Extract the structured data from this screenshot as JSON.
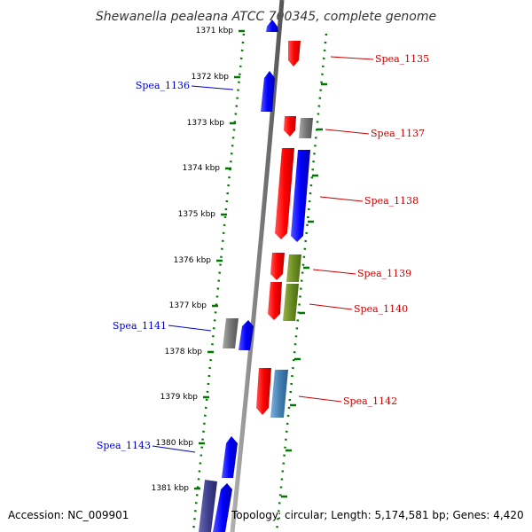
{
  "title": "Shewanella pealeana ATCC 700345, complete genome",
  "footer": {
    "accession": "Accession: NC_009901",
    "topology": "Topology: circular; Length: 5,174,581 bp; Genes: 4,420"
  },
  "colors": {
    "forward_gene": "#ff0000",
    "reverse_gene": "#0000ff",
    "gray_gene": "#808080",
    "olive_gene": "#6b8e23",
    "steel_gene": "#4682b4",
    "indigo_gene": "#3f3f8f",
    "backbone": "#808080",
    "tick_green": "#007700",
    "label_forward": "#cc0000",
    "label_reverse": "#0000cc"
  },
  "kbp_labels": [
    "1371 kbp",
    "1372 kbp",
    "1373 kbp",
    "1374 kbp",
    "1375 kbp",
    "1376 kbp",
    "1377 kbp",
    "1378 kbp",
    "1379 kbp",
    "1380 kbp",
    "1381 kbp"
  ],
  "gene_labels": {
    "g1135": "Spea_1135",
    "g1136": "Spea_1136",
    "g1137": "Spea_1137",
    "g1138": "Spea_1138",
    "g1139": "Spea_1139",
    "g1140": "Spea_1140",
    "g1141": "Spea_1141",
    "g1142": "Spea_1142",
    "g1143": "Spea_1143"
  }
}
